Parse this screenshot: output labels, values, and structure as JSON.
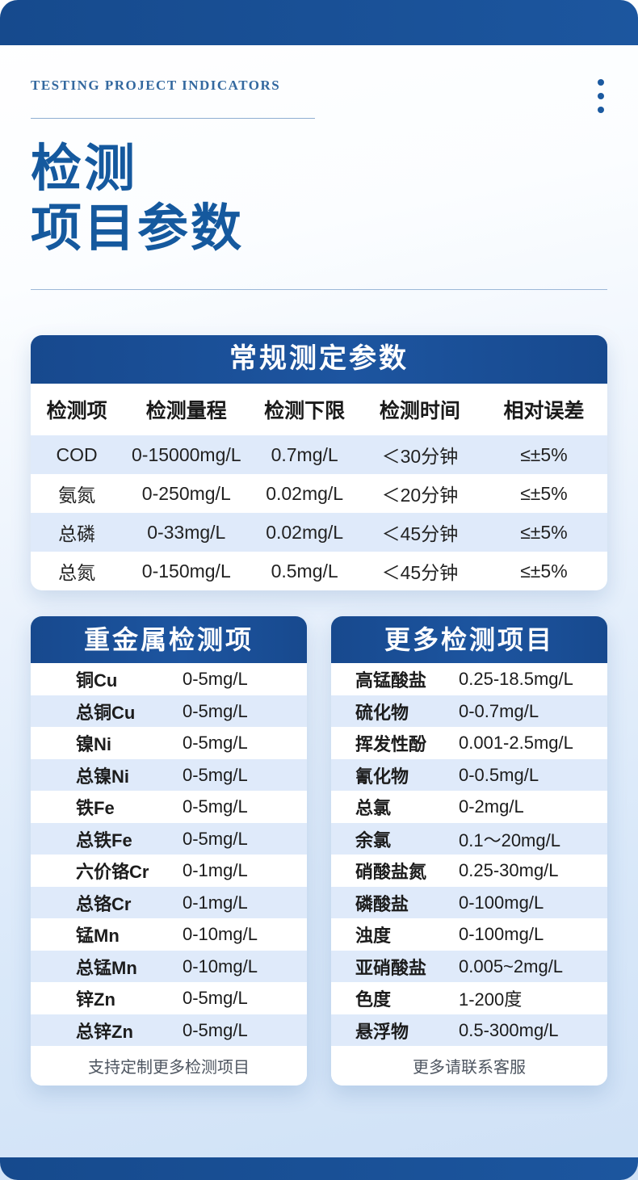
{
  "colors": {
    "primary_blue": "#1b5096",
    "title_blue": "#15599e",
    "row_alt": "#dfeafa",
    "background_bottom": "#cfe1f6"
  },
  "header": {
    "eyebrow": "TESTING PROJECT INDICATORS",
    "title_line1": "检测",
    "title_line2": "项目参数"
  },
  "main_table": {
    "title": "常规测定参数",
    "columns": [
      "检测项",
      "检测量程",
      "检测下限",
      "检测时间",
      "相对误差"
    ],
    "rows": [
      [
        "COD",
        "0-15000mg/L",
        "0.7mg/L",
        "＜30分钟",
        "≤±5%"
      ],
      [
        "氨氮",
        "0-250mg/L",
        "0.02mg/L",
        "＜20分钟",
        "≤±5%"
      ],
      [
        "总磷",
        "0-33mg/L",
        "0.02mg/L",
        "＜45分钟",
        "≤±5%"
      ],
      [
        "总氮",
        "0-150mg/L",
        "0.5mg/L",
        "＜45分钟",
        "≤±5%"
      ]
    ]
  },
  "metal_table": {
    "title": "重金属检测项",
    "rows": [
      {
        "name": "铜Cu",
        "range": "0-5mg/L"
      },
      {
        "name": "总铜Cu",
        "range": "0-5mg/L"
      },
      {
        "name": "镍Ni",
        "range": "0-5mg/L"
      },
      {
        "name": "总镍Ni",
        "range": "0-5mg/L"
      },
      {
        "name": "铁Fe",
        "range": "0-5mg/L"
      },
      {
        "name": "总铁Fe",
        "range": "0-5mg/L"
      },
      {
        "name": "六价铬Cr",
        "range": "0-1mg/L"
      },
      {
        "name": "总铬Cr",
        "range": "0-1mg/L"
      },
      {
        "name": "锰Mn",
        "range": "0-10mg/L"
      },
      {
        "name": "总锰Mn",
        "range": "0-10mg/L"
      },
      {
        "name": "锌Zn",
        "range": "0-5mg/L"
      },
      {
        "name": "总锌Zn",
        "range": "0-5mg/L"
      }
    ],
    "footer": "支持定制更多检测项目"
  },
  "more_table": {
    "title": "更多检测项目",
    "rows": [
      {
        "name": "高锰酸盐",
        "range": "0.25-18.5mg/L"
      },
      {
        "name": "硫化物",
        "range": "0-0.7mg/L"
      },
      {
        "name": "挥发性酚",
        "range": "0.001-2.5mg/L"
      },
      {
        "name": "氰化物",
        "range": "0-0.5mg/L"
      },
      {
        "name": "总氯",
        "range": "0-2mg/L"
      },
      {
        "name": "余氯",
        "range": "0.1～20mg/L"
      },
      {
        "name": "硝酸盐氮",
        "range": "0.25-30mg/L"
      },
      {
        "name": "磷酸盐",
        "range": "0-100mg/L"
      },
      {
        "name": "浊度",
        "range": "0-100mg/L"
      },
      {
        "name": "亚硝酸盐",
        "range": "0.005~2mg/L"
      },
      {
        "name": "色度",
        "range": "1-200度"
      },
      {
        "name": "悬浮物",
        "range": "0.5-300mg/L"
      }
    ],
    "footer": "更多请联系客服"
  }
}
